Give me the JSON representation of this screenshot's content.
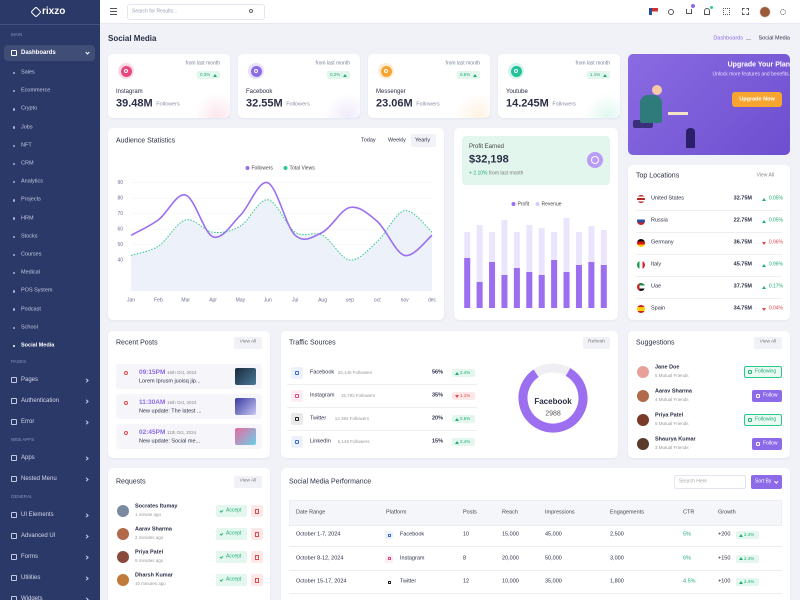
{
  "header": {
    "search_placeholder": "Search for Results..."
  },
  "sidebar": {
    "brand": "rixzo",
    "main_title": "MAIN",
    "active_menu": "Dashboards",
    "submenu": [
      "Sales",
      "Ecommerce",
      "Crypto",
      "Jobs",
      "NFT",
      "CRM",
      "Analytics",
      "Projects",
      "HRM",
      "Stocks",
      "Courses",
      "Medical",
      "POS System",
      "Podcast",
      "School",
      "Social Media"
    ],
    "sections": [
      {
        "title": "PAGES",
        "items": [
          "Pages",
          "Authentication",
          "Error"
        ]
      },
      {
        "title": "WEB APPS",
        "items": [
          "Apps",
          "Nested Menu"
        ]
      },
      {
        "title": "GENERAL",
        "items": [
          "UI Elements",
          "Advanced UI",
          "Forms",
          "Utilities",
          "Widgets"
        ]
      }
    ]
  },
  "page": {
    "title": "Social Media",
    "breadcrumb": [
      "Dashboards",
      "Social Media"
    ]
  },
  "stats": [
    {
      "platform": "Instagram",
      "value": "39.48M",
      "unit": "Followers",
      "note": "from last month",
      "change": "0.3%",
      "color": "#e8467c"
    },
    {
      "platform": "Facebook",
      "value": "32.55M",
      "unit": "Followers",
      "note": "from last month",
      "change": "0.2%",
      "color": "#8c6ae8"
    },
    {
      "platform": "Messenger",
      "value": "23.06M",
      "unit": "Followers",
      "note": "from last month",
      "change": "0.5%",
      "color": "#f7a531"
    },
    {
      "platform": "Youtube",
      "value": "14.245M",
      "unit": "Followers",
      "note": "from last month",
      "change": "1.1%",
      "color": "#21c49a"
    }
  ],
  "upgrade": {
    "title": "Upgrade Your Plan",
    "text": "Unlock more features and benefits.",
    "button": "Upgrade Now"
  },
  "audience": {
    "title": "Audience Statistics",
    "tabs": [
      "Today",
      "Weekly",
      "Yearly"
    ],
    "active_tab": 2,
    "chart": {
      "type": "line",
      "categories": [
        "Jan",
        "Feb",
        "Mar",
        "Apr",
        "May",
        "Jun",
        "Jul",
        "Aug",
        "sep",
        "oct",
        "nov",
        "dec"
      ],
      "series": [
        {
          "name": "Followers",
          "color": "#9b6ff0",
          "dashed": false,
          "values": [
            56,
            66,
            82,
            55,
            69,
            90,
            56,
            58,
            74,
            65,
            43,
            56
          ]
        },
        {
          "name": "Total Views",
          "color": "#2dc98b",
          "dashed": true,
          "values": [
            43,
            49,
            66,
            58,
            62,
            79,
            58,
            56,
            40,
            52,
            72,
            58
          ]
        }
      ],
      "ylim": [
        20,
        95
      ],
      "yticks": [
        40,
        50,
        60,
        70,
        80,
        90
      ]
    }
  },
  "profit": {
    "label": "Profit Earned",
    "amount": "$32,198",
    "change": "+ 2.10%",
    "note": "from last month",
    "chart": {
      "type": "bar",
      "series": [
        {
          "name": "Profit",
          "color": "#9b6ff0",
          "values": [
            50,
            26,
            46,
            33,
            40,
            36,
            33,
            48,
            36,
            43,
            46,
            43
          ]
        },
        {
          "name": "Revenue",
          "color": "#ebe4fd",
          "values": [
            76,
            83,
            76,
            88,
            76,
            83,
            80,
            76,
            90,
            76,
            82,
            78
          ]
        }
      ],
      "ylim": [
        0,
        100
      ]
    }
  },
  "locations": {
    "title": "Top Locations",
    "action": "View All",
    "rows": [
      {
        "country": "United States",
        "value": "32.75M",
        "change": "0.05%",
        "direction": "up"
      },
      {
        "country": "Russia",
        "value": "22.75M",
        "change": "0.05%",
        "direction": "up"
      },
      {
        "country": "Germany",
        "value": "36.75M",
        "change": "0.96%",
        "direction": "down"
      },
      {
        "country": "Italy",
        "value": "45.75M",
        "change": "0.96%",
        "direction": "up"
      },
      {
        "country": "Uae",
        "value": "37.75M",
        "change": "0.17%",
        "direction": "up"
      },
      {
        "country": "Spain",
        "value": "34.75M",
        "change": "0.04%",
        "direction": "down"
      }
    ]
  },
  "recent_posts": {
    "title": "Recent Posts",
    "action": "View All",
    "posts": [
      {
        "time": "09:15PM",
        "date": "15th Oct, 2024",
        "text": "Lorem Iprusm juoisq jip..."
      },
      {
        "time": "11:30AM",
        "date": "15th Oct, 2024",
        "text": "New update: The latest ..."
      },
      {
        "time": "02:45PM",
        "date": "11th Oct, 2024",
        "text": "New update: Social me..."
      }
    ]
  },
  "traffic": {
    "title": "Traffic Sources",
    "action": "Refresh",
    "rows": [
      {
        "platform": "Facebook",
        "followers": "25,145 Followers",
        "percent": "56%",
        "change": "2.4%",
        "direction": "up",
        "color": "#3b6fd8"
      },
      {
        "platform": "Instagram",
        "followers": "15,782 Followers",
        "percent": "35%",
        "change": "1.1%",
        "direction": "down",
        "color": "#e8467c"
      },
      {
        "platform": "Twitter",
        "followers": "12,384 Followers",
        "percent": "20%",
        "change": "0.5%",
        "direction": "up",
        "color": "#222222"
      },
      {
        "platform": "LinkedIn",
        "followers": "6,145 Followers",
        "percent": "15%",
        "change": "2.4%",
        "direction": "up",
        "color": "#3b6fd8"
      }
    ],
    "donut": {
      "label": "Facebook",
      "value": "2988",
      "share": 82,
      "color": "#9b6ff0"
    }
  },
  "suggestions": {
    "title": "Suggestions",
    "action": "View All",
    "people": [
      {
        "name": "Jane Doe",
        "mutual": "5 Mutual Friends",
        "button": "Following"
      },
      {
        "name": "Aarav Sharma",
        "mutual": "4 Mutual Friends",
        "button": "Follow"
      },
      {
        "name": "Priya Patel",
        "mutual": "5 Mutual Friends",
        "button": "Following"
      },
      {
        "name": "Shaurya Kumar",
        "mutual": "3 Mutual Friends",
        "button": "Follow"
      }
    ]
  },
  "requests": {
    "title": "Requests",
    "action": "View All",
    "button": "Accept",
    "people": [
      {
        "name": "Socrates Itumay",
        "time": "1 minute ago"
      },
      {
        "name": "Aarav Sharma",
        "time": "2 minutes ago"
      },
      {
        "name": "Priya Patel",
        "time": "5 minutes ago"
      },
      {
        "name": "Dharsh Kumar",
        "time": "10 minutes ago"
      }
    ]
  },
  "performance": {
    "title": "Social Media Performance",
    "search_placeholder": "Search Here",
    "sort": "Sort By",
    "columns": [
      "Date Range",
      "Platform",
      "Posts",
      "Reach",
      "Impressions",
      "Engagements",
      "CTR",
      "Growth"
    ],
    "rows": [
      [
        "October 1-7, 2024",
        "Facebook",
        "10",
        "15,000",
        "45,000",
        "2,500",
        "5%",
        "+200",
        "2.4%"
      ],
      [
        "October 8-12, 2024",
        "Instagram",
        "8",
        "20,000",
        "50,000",
        "3,000",
        "6%",
        "+150",
        "2.4%"
      ],
      [
        "October 15-17, 2024",
        "Twitter",
        "12",
        "10,000",
        "35,000",
        "1,800",
        "4.5%",
        "+100",
        "2.4%"
      ]
    ]
  }
}
